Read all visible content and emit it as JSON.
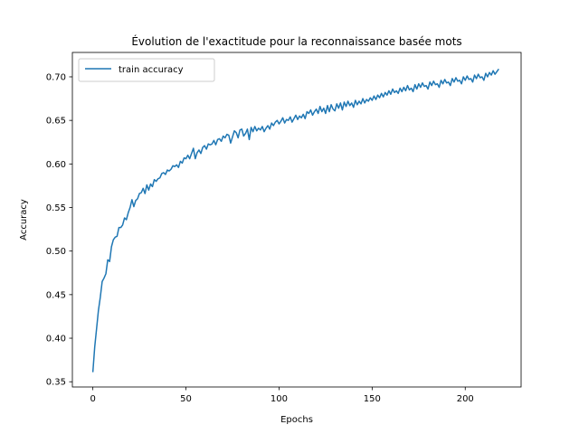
{
  "chart_data": {
    "type": "line",
    "title": "Évolution de l'exactitude pour la reconnaissance basée mots",
    "xlabel": "Epochs",
    "ylabel": "Accuracy",
    "xlim": [
      -11,
      230
    ],
    "ylim": [
      0.344,
      0.728
    ],
    "xticks": [
      0,
      50,
      100,
      150,
      200
    ],
    "yticks": [
      0.35,
      0.4,
      0.45,
      0.5,
      0.55,
      0.6,
      0.65,
      0.7
    ],
    "ytick_labels": [
      "0.35",
      "0.40",
      "0.45",
      "0.50",
      "0.55",
      "0.60",
      "0.65",
      "0.70"
    ],
    "legend_position": "top-left",
    "grid": false,
    "series": [
      {
        "name": "train accuracy",
        "color": "#1f77b4",
        "x": [
          0,
          1,
          2,
          3,
          4,
          5,
          6,
          7,
          8,
          9,
          10,
          11,
          12,
          13,
          14,
          15,
          16,
          17,
          18,
          19,
          20,
          21,
          22,
          23,
          24,
          25,
          26,
          27,
          28,
          29,
          30,
          31,
          32,
          33,
          34,
          35,
          36,
          37,
          38,
          39,
          40,
          41,
          42,
          43,
          44,
          45,
          46,
          47,
          48,
          49,
          50,
          51,
          52,
          53,
          54,
          55,
          56,
          57,
          58,
          59,
          60,
          61,
          62,
          63,
          64,
          65,
          66,
          67,
          68,
          69,
          70,
          71,
          72,
          73,
          74,
          75,
          76,
          77,
          78,
          79,
          80,
          81,
          82,
          83,
          84,
          85,
          86,
          87,
          88,
          89,
          90,
          91,
          92,
          93,
          94,
          95,
          96,
          97,
          98,
          99,
          100,
          101,
          102,
          103,
          104,
          105,
          106,
          107,
          108,
          109,
          110,
          111,
          112,
          113,
          114,
          115,
          116,
          117,
          118,
          119,
          120,
          121,
          122,
          123,
          124,
          125,
          126,
          127,
          128,
          129,
          130,
          131,
          132,
          133,
          134,
          135,
          136,
          137,
          138,
          139,
          140,
          141,
          142,
          143,
          144,
          145,
          146,
          147,
          148,
          149,
          150,
          151,
          152,
          153,
          154,
          155,
          156,
          157,
          158,
          159,
          160,
          161,
          162,
          163,
          164,
          165,
          166,
          167,
          168,
          169,
          170,
          171,
          172,
          173,
          174,
          175,
          176,
          177,
          178,
          179,
          180,
          181,
          182,
          183,
          184,
          185,
          186,
          187,
          188,
          189,
          190,
          191,
          192,
          193,
          194,
          195,
          196,
          197,
          198,
          199,
          200,
          201,
          202,
          203,
          204,
          205,
          206,
          207,
          208,
          209,
          210,
          211,
          212,
          213,
          214,
          215,
          216,
          217,
          218
        ],
        "values": [
          0.361,
          0.39,
          0.411,
          0.432,
          0.447,
          0.465,
          0.469,
          0.474,
          0.49,
          0.488,
          0.505,
          0.513,
          0.516,
          0.517,
          0.527,
          0.527,
          0.53,
          0.538,
          0.536,
          0.544,
          0.55,
          0.559,
          0.551,
          0.558,
          0.56,
          0.566,
          0.567,
          0.572,
          0.566,
          0.576,
          0.57,
          0.577,
          0.574,
          0.582,
          0.58,
          0.583,
          0.584,
          0.589,
          0.59,
          0.588,
          0.593,
          0.592,
          0.594,
          0.598,
          0.597,
          0.599,
          0.596,
          0.603,
          0.601,
          0.607,
          0.606,
          0.61,
          0.606,
          0.612,
          0.618,
          0.606,
          0.613,
          0.616,
          0.612,
          0.619,
          0.621,
          0.617,
          0.623,
          0.622,
          0.623,
          0.627,
          0.622,
          0.628,
          0.629,
          0.626,
          0.632,
          0.63,
          0.634,
          0.633,
          0.624,
          0.631,
          0.638,
          0.636,
          0.63,
          0.639,
          0.64,
          0.632,
          0.635,
          0.64,
          0.628,
          0.642,
          0.637,
          0.643,
          0.638,
          0.641,
          0.639,
          0.643,
          0.637,
          0.641,
          0.644,
          0.64,
          0.647,
          0.644,
          0.648,
          0.65,
          0.646,
          0.649,
          0.653,
          0.647,
          0.651,
          0.65,
          0.654,
          0.648,
          0.652,
          0.656,
          0.651,
          0.655,
          0.653,
          0.657,
          0.652,
          0.66,
          0.658,
          0.662,
          0.656,
          0.66,
          0.663,
          0.658,
          0.666,
          0.66,
          0.664,
          0.658,
          0.667,
          0.66,
          0.668,
          0.663,
          0.661,
          0.669,
          0.664,
          0.67,
          0.662,
          0.671,
          0.666,
          0.672,
          0.667,
          0.67,
          0.665,
          0.673,
          0.668,
          0.672,
          0.669,
          0.675,
          0.67,
          0.674,
          0.672,
          0.676,
          0.673,
          0.678,
          0.674,
          0.679,
          0.676,
          0.681,
          0.677,
          0.682,
          0.679,
          0.684,
          0.68,
          0.686,
          0.682,
          0.684,
          0.681,
          0.687,
          0.683,
          0.688,
          0.684,
          0.69,
          0.685,
          0.687,
          0.683,
          0.691,
          0.686,
          0.692,
          0.688,
          0.693,
          0.689,
          0.69,
          0.686,
          0.694,
          0.69,
          0.695,
          0.691,
          0.692,
          0.688,
          0.696,
          0.692,
          0.697,
          0.693,
          0.694,
          0.69,
          0.698,
          0.694,
          0.699,
          0.695,
          0.696,
          0.692,
          0.7,
          0.696,
          0.701,
          0.697,
          0.698,
          0.694,
          0.702,
          0.698,
          0.703,
          0.699,
          0.7,
          0.696,
          0.704,
          0.7,
          0.705,
          0.702,
          0.707,
          0.703,
          0.706,
          0.709
        ]
      }
    ]
  }
}
